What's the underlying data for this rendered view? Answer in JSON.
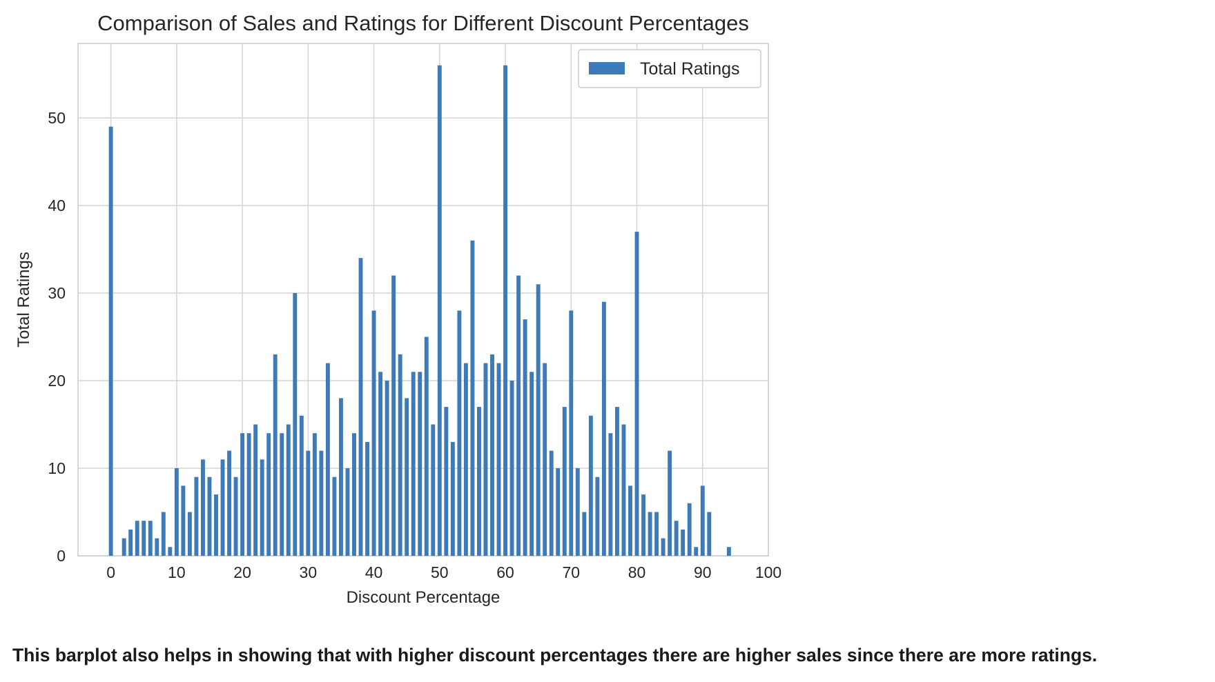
{
  "chart_data": {
    "type": "bar",
    "title": "Comparison of Sales and Ratings for Different Discount Percentages",
    "xlabel": "Discount Percentage",
    "ylabel": "Total Ratings",
    "xlim": [
      -5,
      100
    ],
    "ylim": [
      0,
      58.5
    ],
    "xticks": [
      0,
      10,
      20,
      30,
      40,
      50,
      60,
      70,
      80,
      90,
      100
    ],
    "yticks": [
      0,
      10,
      20,
      30,
      40,
      50
    ],
    "grid": true,
    "legend": {
      "position": "top-right",
      "entries": [
        "Total Ratings"
      ]
    },
    "series": [
      {
        "name": "Total Ratings",
        "color": "#3e7ab7",
        "x": [
          0,
          2,
          3,
          4,
          5,
          6,
          7,
          8,
          9,
          10,
          11,
          12,
          13,
          14,
          15,
          16,
          17,
          18,
          19,
          20,
          21,
          22,
          23,
          24,
          25,
          26,
          27,
          28,
          29,
          30,
          31,
          32,
          33,
          34,
          35,
          36,
          37,
          38,
          39,
          40,
          41,
          42,
          43,
          44,
          45,
          46,
          47,
          48,
          49,
          50,
          51,
          52,
          53,
          54,
          55,
          56,
          57,
          58,
          59,
          60,
          61,
          62,
          63,
          64,
          65,
          66,
          67,
          68,
          69,
          70,
          71,
          72,
          73,
          74,
          75,
          76,
          77,
          78,
          79,
          80,
          81,
          82,
          83,
          84,
          85,
          86,
          87,
          88,
          89,
          90,
          91,
          94
        ],
        "values": [
          49,
          2,
          3,
          4,
          4,
          4,
          2,
          5,
          1,
          10,
          8,
          5,
          9,
          11,
          9,
          7,
          11,
          12,
          9,
          14,
          14,
          15,
          11,
          14,
          23,
          14,
          15,
          30,
          16,
          12,
          14,
          12,
          22,
          9,
          18,
          10,
          14,
          34,
          13,
          28,
          21,
          20,
          32,
          23,
          18,
          21,
          21,
          25,
          15,
          56,
          17,
          13,
          28,
          22,
          36,
          17,
          22,
          23,
          22,
          56,
          20,
          32,
          27,
          21,
          31,
          22,
          12,
          10,
          17,
          28,
          10,
          5,
          16,
          9,
          29,
          14,
          17,
          15,
          8,
          37,
          7,
          5,
          5,
          2,
          12,
          4,
          3,
          6,
          1,
          8,
          5,
          1
        ]
      }
    ]
  },
  "caption": "This barplot also helps in showing that with higher discount percentages there are higher sales since there are more ratings."
}
